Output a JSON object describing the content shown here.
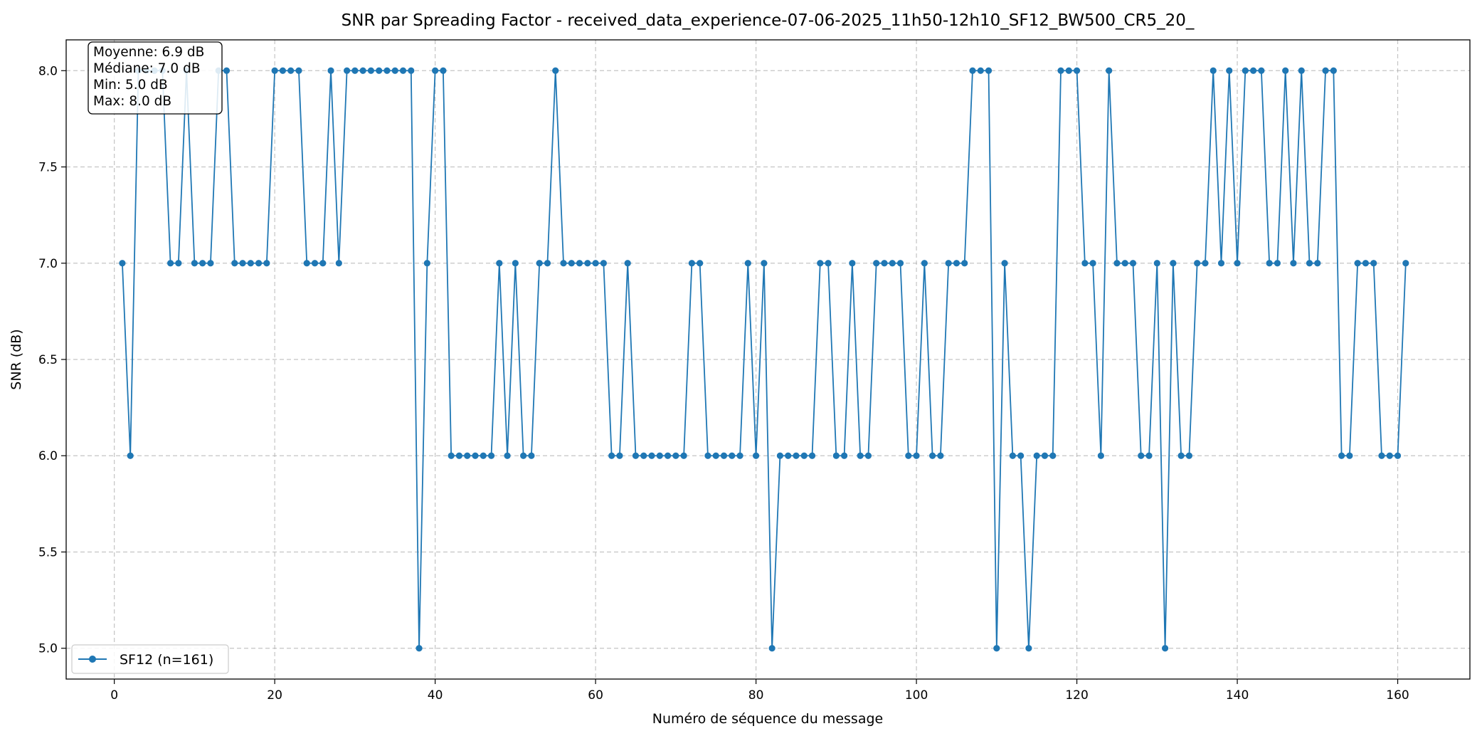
{
  "chart_data": {
    "type": "line",
    "title": "SNR par Spreading Factor - received_data_experience-07-06-2025_11h50-12h10_SF12_BW500_CR5_20_",
    "xlabel": "Numéro de séquence du message",
    "ylabel": "SNR (dB)",
    "xlim": [
      -6,
      169
    ],
    "ylim": [
      4.84,
      8.16
    ],
    "xticks": [
      0,
      20,
      40,
      60,
      80,
      100,
      120,
      140,
      160
    ],
    "yticks": [
      5.0,
      5.5,
      6.0,
      6.5,
      7.0,
      7.5,
      8.0
    ],
    "grid": true,
    "legend_position": "lower-left",
    "color": "#1f77b4",
    "stats": [
      "Moyenne: 6.9 dB",
      "Médiane: 7.0 dB",
      "Min: 5.0 dB",
      "Max: 8.0 dB"
    ],
    "series": [
      {
        "name": "SF12 (n=161)",
        "x": [
          1,
          2,
          3,
          4,
          5,
          6,
          7,
          8,
          9,
          10,
          11,
          12,
          13,
          14,
          15,
          16,
          17,
          18,
          19,
          20,
          21,
          22,
          23,
          24,
          25,
          26,
          27,
          28,
          29,
          30,
          31,
          32,
          33,
          34,
          35,
          36,
          37,
          38,
          39,
          40,
          41,
          42,
          43,
          44,
          45,
          46,
          47,
          48,
          49,
          50,
          51,
          52,
          53,
          54,
          55,
          56,
          57,
          58,
          59,
          60,
          61,
          62,
          63,
          64,
          65,
          66,
          67,
          68,
          69,
          70,
          71,
          72,
          73,
          74,
          75,
          76,
          77,
          78,
          79,
          80,
          81,
          82,
          83,
          84,
          85,
          86,
          87,
          88,
          89,
          90,
          91,
          92,
          93,
          94,
          95,
          96,
          97,
          98,
          99,
          100,
          101,
          102,
          103,
          104,
          105,
          106,
          107,
          108,
          109,
          110,
          111,
          112,
          113,
          114,
          115,
          116,
          117,
          118,
          119,
          120,
          121,
          122,
          123,
          124,
          125,
          126,
          127,
          128,
          129,
          130,
          131,
          132,
          133,
          134,
          135,
          136,
          137,
          138,
          139,
          140,
          141,
          142,
          143,
          144,
          145,
          146,
          147,
          148,
          149,
          150,
          151,
          152,
          153,
          154,
          155,
          156,
          157,
          158,
          159,
          160,
          161
        ],
        "y": [
          7,
          6,
          8,
          8,
          8,
          8,
          7,
          7,
          8,
          7,
          7,
          7,
          8,
          8,
          7,
          7,
          7,
          7,
          7,
          8,
          8,
          8,
          8,
          7,
          7,
          7,
          8,
          7,
          8,
          8,
          8,
          8,
          8,
          8,
          8,
          8,
          8,
          5,
          7,
          8,
          8,
          6,
          6,
          6,
          6,
          6,
          6,
          7,
          6,
          7,
          6,
          6,
          7,
          7,
          8,
          7,
          7,
          7,
          7,
          7,
          7,
          6,
          6,
          7,
          6,
          6,
          6,
          6,
          6,
          6,
          6,
          7,
          7,
          6,
          6,
          6,
          6,
          6,
          7,
          6,
          7,
          5,
          6,
          6,
          6,
          6,
          6,
          7,
          7,
          6,
          6,
          7,
          6,
          6,
          7,
          7,
          7,
          7,
          6,
          6,
          7,
          6,
          6,
          7,
          7,
          7,
          8,
          8,
          8,
          5,
          7,
          6,
          6,
          5,
          6,
          6,
          6,
          8,
          8,
          8,
          7,
          7,
          6,
          8,
          7,
          7,
          7,
          6,
          6,
          7,
          5,
          7,
          6,
          6,
          7,
          7,
          8,
          7,
          8,
          7,
          8,
          8,
          8,
          7,
          7,
          8,
          7,
          8,
          7,
          7,
          8,
          8,
          6,
          6,
          7,
          7,
          7,
          6,
          6,
          6,
          7
        ]
      }
    ]
  }
}
